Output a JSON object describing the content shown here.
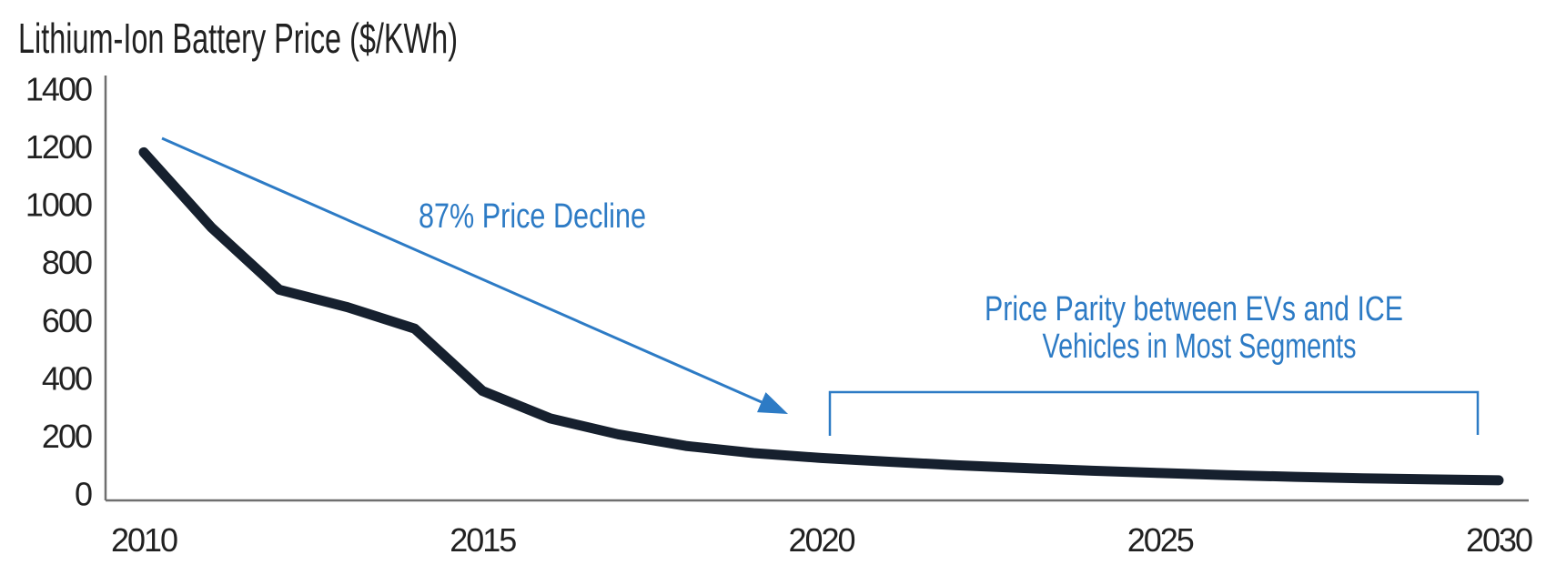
{
  "chart_data": {
    "type": "line",
    "title": "Lithium-Ion Battery Price ($/KWh)",
    "xlabel": "",
    "ylabel": "Lithium-Ion Battery Price ($/KWh)",
    "x": [
      2010,
      2011,
      2012,
      2013,
      2014,
      2015,
      2016,
      2017,
      2018,
      2019,
      2020,
      2021,
      2022,
      2023,
      2024,
      2025,
      2026,
      2027,
      2028,
      2029,
      2030
    ],
    "series": [
      {
        "name": "Battery price ($/KWh)",
        "values": [
          1180,
          920,
          705,
          645,
          570,
          355,
          260,
          205,
          165,
          140,
          123,
          110,
          98,
          88,
          79,
          71,
          64,
          58,
          53,
          49,
          46
        ]
      }
    ],
    "x_axis": {
      "ticks": [
        2010,
        2015,
        2020,
        2025,
        2030
      ]
    },
    "y_axis": {
      "ticks": [
        1400,
        1200,
        1000,
        800,
        600,
        400,
        200,
        0
      ]
    },
    "xlim": [
      2010,
      2030
    ],
    "ylim": [
      0,
      1400
    ],
    "grid": false,
    "legend": "none",
    "annotations": [
      {
        "id": "decline",
        "text": "87% Price Decline",
        "style": "arrow-callout"
      },
      {
        "id": "parity",
        "text": "Price Parity between EVs and ICE Vehicles in Most Segments",
        "line1": "Price Parity between EVs and ICE",
        "line2": "Vehicles in Most Segments",
        "style": "bracket-callout",
        "span_years": [
          2020,
          2030
        ]
      }
    ],
    "colors": {
      "ink": "#212121",
      "accent": "#2d7bc5",
      "curve": "#16202e",
      "axis": "#6f6f6f"
    }
  }
}
